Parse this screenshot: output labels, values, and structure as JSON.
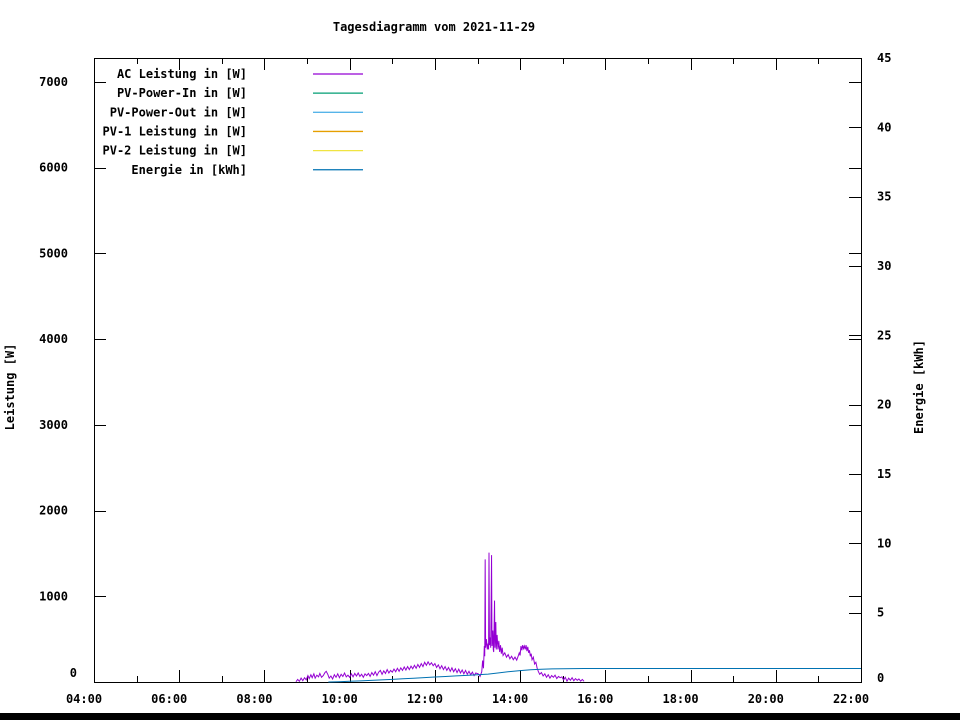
{
  "chart_data": {
    "type": "line",
    "title": "Tagesdiagramm vom 2021-11-29",
    "ylabel_left": "Leistung [W]",
    "ylabel_right": "Energie [kWh]",
    "xlim_hours": [
      4,
      22
    ],
    "x_major_step_hours": 2,
    "x_minor_step_hours": 1,
    "ylim_left": [
      0,
      7280
    ],
    "ytick_step_left": 1000,
    "ytick_max_label_left": 7000,
    "ylim_right": [
      0,
      45
    ],
    "ytick_step_right": 5,
    "grid": false,
    "legend_position": "top-left-inside",
    "axes": {
      "x_tick_labels": [
        "04:00",
        "06:00",
        "08:00",
        "10:00",
        "12:00",
        "14:00",
        "16:00",
        "18:00",
        "20:00",
        "22:00"
      ],
      "y_left_tick_labels": [
        "0",
        "1000",
        "2000",
        "3000",
        "4000",
        "5000",
        "6000",
        "7000"
      ],
      "y_right_tick_labels": [
        "0",
        "5",
        "10",
        "15",
        "20",
        "25",
        "30",
        "35",
        "40",
        "45"
      ]
    },
    "series": [
      {
        "name": "AC Leistung in [W]",
        "color": "#9400d3",
        "axis": "left",
        "points": [
          [
            8.74,
            3
          ],
          [
            8.78,
            30
          ],
          [
            8.82,
            8
          ],
          [
            8.86,
            45
          ],
          [
            8.9,
            15
          ],
          [
            8.94,
            50
          ],
          [
            8.98,
            25
          ],
          [
            9.02,
            75
          ],
          [
            9.05,
            40
          ],
          [
            9.09,
            85
          ],
          [
            9.12,
            50
          ],
          [
            9.16,
            95
          ],
          [
            9.19,
            45
          ],
          [
            9.23,
            80
          ],
          [
            9.27,
            60
          ],
          [
            9.3,
            100
          ],
          [
            9.34,
            55
          ],
          [
            9.38,
            75
          ],
          [
            9.42,
            110
          ],
          [
            9.45,
            125
          ],
          [
            9.49,
            85
          ],
          [
            9.52,
            45
          ],
          [
            9.56,
            70
          ],
          [
            9.6,
            35
          ],
          [
            9.64,
            85
          ],
          [
            9.68,
            55
          ],
          [
            9.72,
            95
          ],
          [
            9.76,
            50
          ],
          [
            9.8,
            90
          ],
          [
            9.84,
            65
          ],
          [
            9.88,
            105
          ],
          [
            9.92,
            60
          ],
          [
            9.96,
            80
          ],
          [
            10.0,
            55
          ],
          [
            10.04,
            95
          ],
          [
            10.08,
            60
          ],
          [
            10.12,
            100
          ],
          [
            10.16,
            70
          ],
          [
            10.2,
            105
          ],
          [
            10.24,
            65
          ],
          [
            10.28,
            90
          ],
          [
            10.32,
            55
          ],
          [
            10.36,
            95
          ],
          [
            10.4,
            75
          ],
          [
            10.44,
            100
          ],
          [
            10.48,
            65
          ],
          [
            10.52,
            110
          ],
          [
            10.56,
            80
          ],
          [
            10.6,
            120
          ],
          [
            10.64,
            75
          ],
          [
            10.68,
            115
          ],
          [
            10.72,
            135
          ],
          [
            10.76,
            90
          ],
          [
            10.8,
            130
          ],
          [
            10.84,
            100
          ],
          [
            10.88,
            145
          ],
          [
            10.92,
            105
          ],
          [
            10.96,
            135
          ],
          [
            11.0,
            115
          ],
          [
            11.04,
            150
          ],
          [
            11.08,
            120
          ],
          [
            11.12,
            160
          ],
          [
            11.16,
            125
          ],
          [
            11.2,
            165
          ],
          [
            11.24,
            135
          ],
          [
            11.28,
            175
          ],
          [
            11.32,
            140
          ],
          [
            11.36,
            180
          ],
          [
            11.4,
            145
          ],
          [
            11.44,
            185
          ],
          [
            11.48,
            155
          ],
          [
            11.52,
            195
          ],
          [
            11.56,
            160
          ],
          [
            11.6,
            205
          ],
          [
            11.64,
            170
          ],
          [
            11.68,
            215
          ],
          [
            11.72,
            180
          ],
          [
            11.76,
            230
          ],
          [
            11.8,
            195
          ],
          [
            11.84,
            235
          ],
          [
            11.88,
            200
          ],
          [
            11.92,
            225
          ],
          [
            11.96,
            190
          ],
          [
            12.0,
            215
          ],
          [
            12.04,
            170
          ],
          [
            12.08,
            200
          ],
          [
            12.12,
            155
          ],
          [
            12.16,
            190
          ],
          [
            12.2,
            145
          ],
          [
            12.24,
            180
          ],
          [
            12.28,
            135
          ],
          [
            12.32,
            170
          ],
          [
            12.36,
            125
          ],
          [
            12.4,
            165
          ],
          [
            12.44,
            120
          ],
          [
            12.48,
            155
          ],
          [
            12.52,
            110
          ],
          [
            12.56,
            150
          ],
          [
            12.6,
            105
          ],
          [
            12.64,
            140
          ],
          [
            12.68,
            95
          ],
          [
            12.72,
            135
          ],
          [
            12.76,
            90
          ],
          [
            12.8,
            125
          ],
          [
            12.84,
            85
          ],
          [
            12.88,
            115
          ],
          [
            12.92,
            75
          ],
          [
            12.96,
            105
          ],
          [
            13.02,
            95
          ],
          [
            13.06,
            65
          ],
          [
            13.1,
            120
          ],
          [
            13.12,
            250
          ],
          [
            13.14,
            160
          ],
          [
            13.16,
            420
          ],
          [
            13.17,
            300
          ],
          [
            13.18,
            1430
          ],
          [
            13.19,
            400
          ],
          [
            13.21,
            500
          ],
          [
            13.23,
            380
          ],
          [
            13.25,
            450
          ],
          [
            13.26,
            380
          ],
          [
            13.27,
            1510
          ],
          [
            13.28,
            430
          ],
          [
            13.3,
            520
          ],
          [
            13.31,
            400
          ],
          [
            13.33,
            1480
          ],
          [
            13.34,
            420
          ],
          [
            13.36,
            600
          ],
          [
            13.37,
            380
          ],
          [
            13.38,
            350
          ],
          [
            13.4,
            950
          ],
          [
            13.41,
            400
          ],
          [
            13.43,
            700
          ],
          [
            13.44,
            380
          ],
          [
            13.46,
            550
          ],
          [
            13.48,
            380
          ],
          [
            13.5,
            480
          ],
          [
            13.52,
            350
          ],
          [
            13.54,
            430
          ],
          [
            13.56,
            330
          ],
          [
            13.58,
            400
          ],
          [
            13.6,
            310
          ],
          [
            13.64,
            340
          ],
          [
            13.68,
            290
          ],
          [
            13.72,
            320
          ],
          [
            13.76,
            270
          ],
          [
            13.8,
            300
          ],
          [
            13.84,
            260
          ],
          [
            13.88,
            290
          ],
          [
            13.92,
            255
          ],
          [
            13.96,
            310
          ],
          [
            13.98,
            340
          ],
          [
            14.0,
            310
          ],
          [
            14.02,
            420
          ],
          [
            14.04,
            370
          ],
          [
            14.06,
            430
          ],
          [
            14.08,
            390
          ],
          [
            14.1,
            420
          ],
          [
            14.12,
            380
          ],
          [
            14.14,
            430
          ],
          [
            14.16,
            360
          ],
          [
            14.18,
            410
          ],
          [
            14.2,
            340
          ],
          [
            14.22,
            370
          ],
          [
            14.24,
            300
          ],
          [
            14.26,
            330
          ],
          [
            14.28,
            260
          ],
          [
            14.31,
            290
          ],
          [
            14.34,
            210
          ],
          [
            14.37,
            230
          ],
          [
            14.4,
            160
          ],
          [
            14.43,
            120
          ],
          [
            14.46,
            90
          ],
          [
            14.5,
            110
          ],
          [
            14.54,
            70
          ],
          [
            14.58,
            95
          ],
          [
            14.62,
            55
          ],
          [
            14.66,
            85
          ],
          [
            14.7,
            45
          ],
          [
            14.74,
            75
          ],
          [
            14.78,
            55
          ],
          [
            14.82,
            80
          ],
          [
            14.86,
            40
          ],
          [
            14.9,
            65
          ],
          [
            14.94,
            50
          ],
          [
            14.98,
            60
          ],
          [
            15.02,
            25
          ],
          [
            15.06,
            55
          ],
          [
            15.1,
            10
          ],
          [
            15.14,
            45
          ],
          [
            15.18,
            20
          ],
          [
            15.22,
            50
          ],
          [
            15.26,
            15
          ],
          [
            15.3,
            40
          ],
          [
            15.34,
            20
          ],
          [
            15.38,
            35
          ],
          [
            15.42,
            10
          ],
          [
            15.46,
            30
          ],
          [
            15.5,
            8
          ]
        ]
      },
      {
        "name": "PV-Power-In in [W]",
        "color": "#009e73",
        "axis": "left",
        "points": []
      },
      {
        "name": "PV-Power-Out in [W]",
        "color": "#56b4e9",
        "axis": "left",
        "points": []
      },
      {
        "name": "PV-1 Leistung in [W]",
        "color": "#e69f00",
        "axis": "left",
        "points": []
      },
      {
        "name": "PV-2 Leistung in [W]",
        "color": "#f0e442",
        "axis": "left",
        "points": []
      },
      {
        "name": "Energie in [kWh]",
        "color": "#0072b2",
        "axis": "right",
        "points": [
          [
            9.5,
            0.0
          ],
          [
            9.75,
            0.02
          ],
          [
            10.0,
            0.05
          ],
          [
            10.25,
            0.08
          ],
          [
            10.5,
            0.12
          ],
          [
            10.75,
            0.155
          ],
          [
            11.0,
            0.19
          ],
          [
            11.25,
            0.23
          ],
          [
            11.5,
            0.27
          ],
          [
            11.75,
            0.315
          ],
          [
            12.0,
            0.36
          ],
          [
            12.25,
            0.4
          ],
          [
            12.5,
            0.44
          ],
          [
            12.75,
            0.48
          ],
          [
            13.0,
            0.52
          ],
          [
            13.25,
            0.57
          ],
          [
            13.5,
            0.66
          ],
          [
            13.75,
            0.75
          ],
          [
            14.0,
            0.82
          ],
          [
            14.25,
            0.88
          ],
          [
            14.5,
            0.92
          ],
          [
            14.75,
            0.95
          ],
          [
            15.0,
            0.96
          ],
          [
            15.5,
            0.97
          ],
          [
            22.0,
            0.97
          ]
        ]
      }
    ]
  }
}
